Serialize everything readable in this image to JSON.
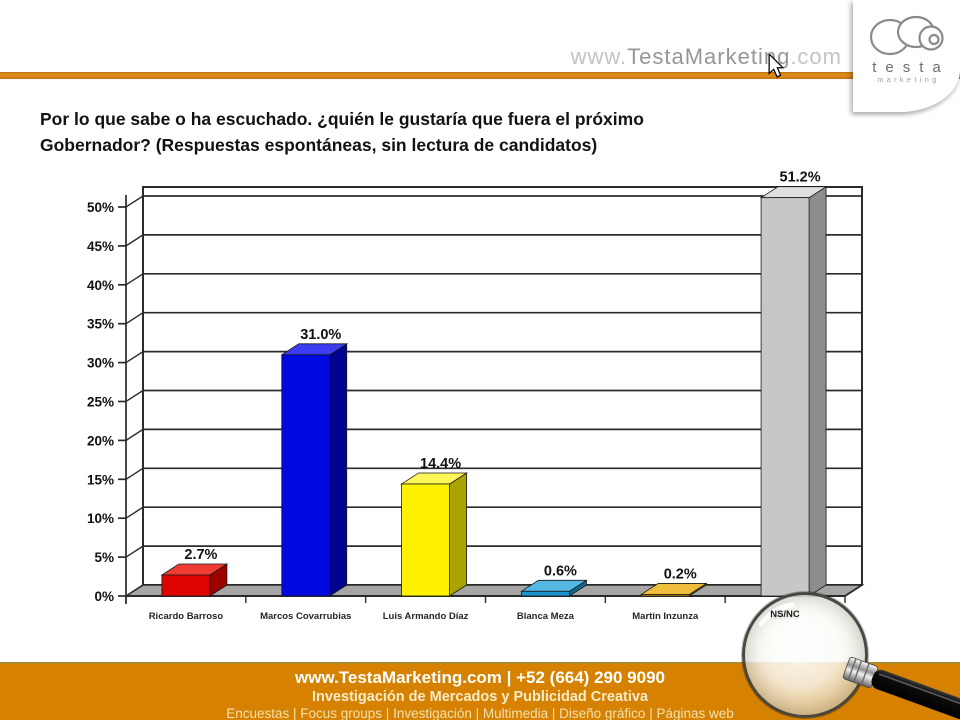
{
  "header": {
    "website_www": "www.",
    "website_name": "TestaMarketing",
    "website_tld": ".com",
    "logo_text": "testa",
    "logo_subtext": "marketing",
    "rule_color": "#D9861A"
  },
  "title": {
    "line1": "Por lo que sabe o ha escuchado. ¿quién le gustaría que fuera el próximo",
    "line2": "Gobernador? (Respuestas espontáneas, sin lectura de candidatos)"
  },
  "chart_data": {
    "type": "bar",
    "projection": "3d",
    "title": "",
    "categories": [
      "Ricardo Barroso",
      "Marcos Covarrubias",
      "Luis Armando Díaz",
      "Blanca Meza",
      "Martín Inzunza",
      "NS/NC"
    ],
    "values": [
      2.7,
      31.0,
      14.4,
      0.6,
      0.2,
      51.2
    ],
    "value_labels": [
      "2.7%",
      "31.0%",
      "14.4%",
      "0.6%",
      "0.2%",
      "51.2%"
    ],
    "ytick_labels": [
      "0%",
      "5%",
      "10%",
      "15%",
      "20%",
      "25%",
      "30%",
      "35%",
      "40%",
      "45%",
      "50%"
    ],
    "ylim": [
      0,
      50
    ],
    "ytick_step": 5,
    "grid": true,
    "legend": false,
    "bar_colors": [
      {
        "front": "#E00400",
        "top": "#EF3B32",
        "side": "#9E0200"
      },
      {
        "front": "#0009E0",
        "top": "#3C3CF0",
        "side": "#000292"
      },
      {
        "front": "#FFF200",
        "top": "#FFF75A",
        "side": "#ABA300"
      },
      {
        "front": "#1B94CE",
        "top": "#54B7E4",
        "side": "#126A96"
      },
      {
        "front": "#E2A100",
        "top": "#EFBE3C",
        "side": "#9D7100"
      },
      {
        "front": "#C7C7C7",
        "top": "#DFDFDF",
        "side": "#8D8D8D"
      }
    ],
    "wall_color": "#FFFFFF",
    "floor_color": "#A6A6A6",
    "axis_color": "#2B2B2B",
    "label_color": "#111111"
  },
  "footer": {
    "line1": "www.TestaMarketing.com | +52 (664) 290 9090",
    "line2": "Investigación de Mercados y Publicidad Creativa",
    "line3": "Encuestas | Focus groups | Investigación | Multimedia | Diseño gráfico | Páginas web",
    "background": "#D68200"
  }
}
